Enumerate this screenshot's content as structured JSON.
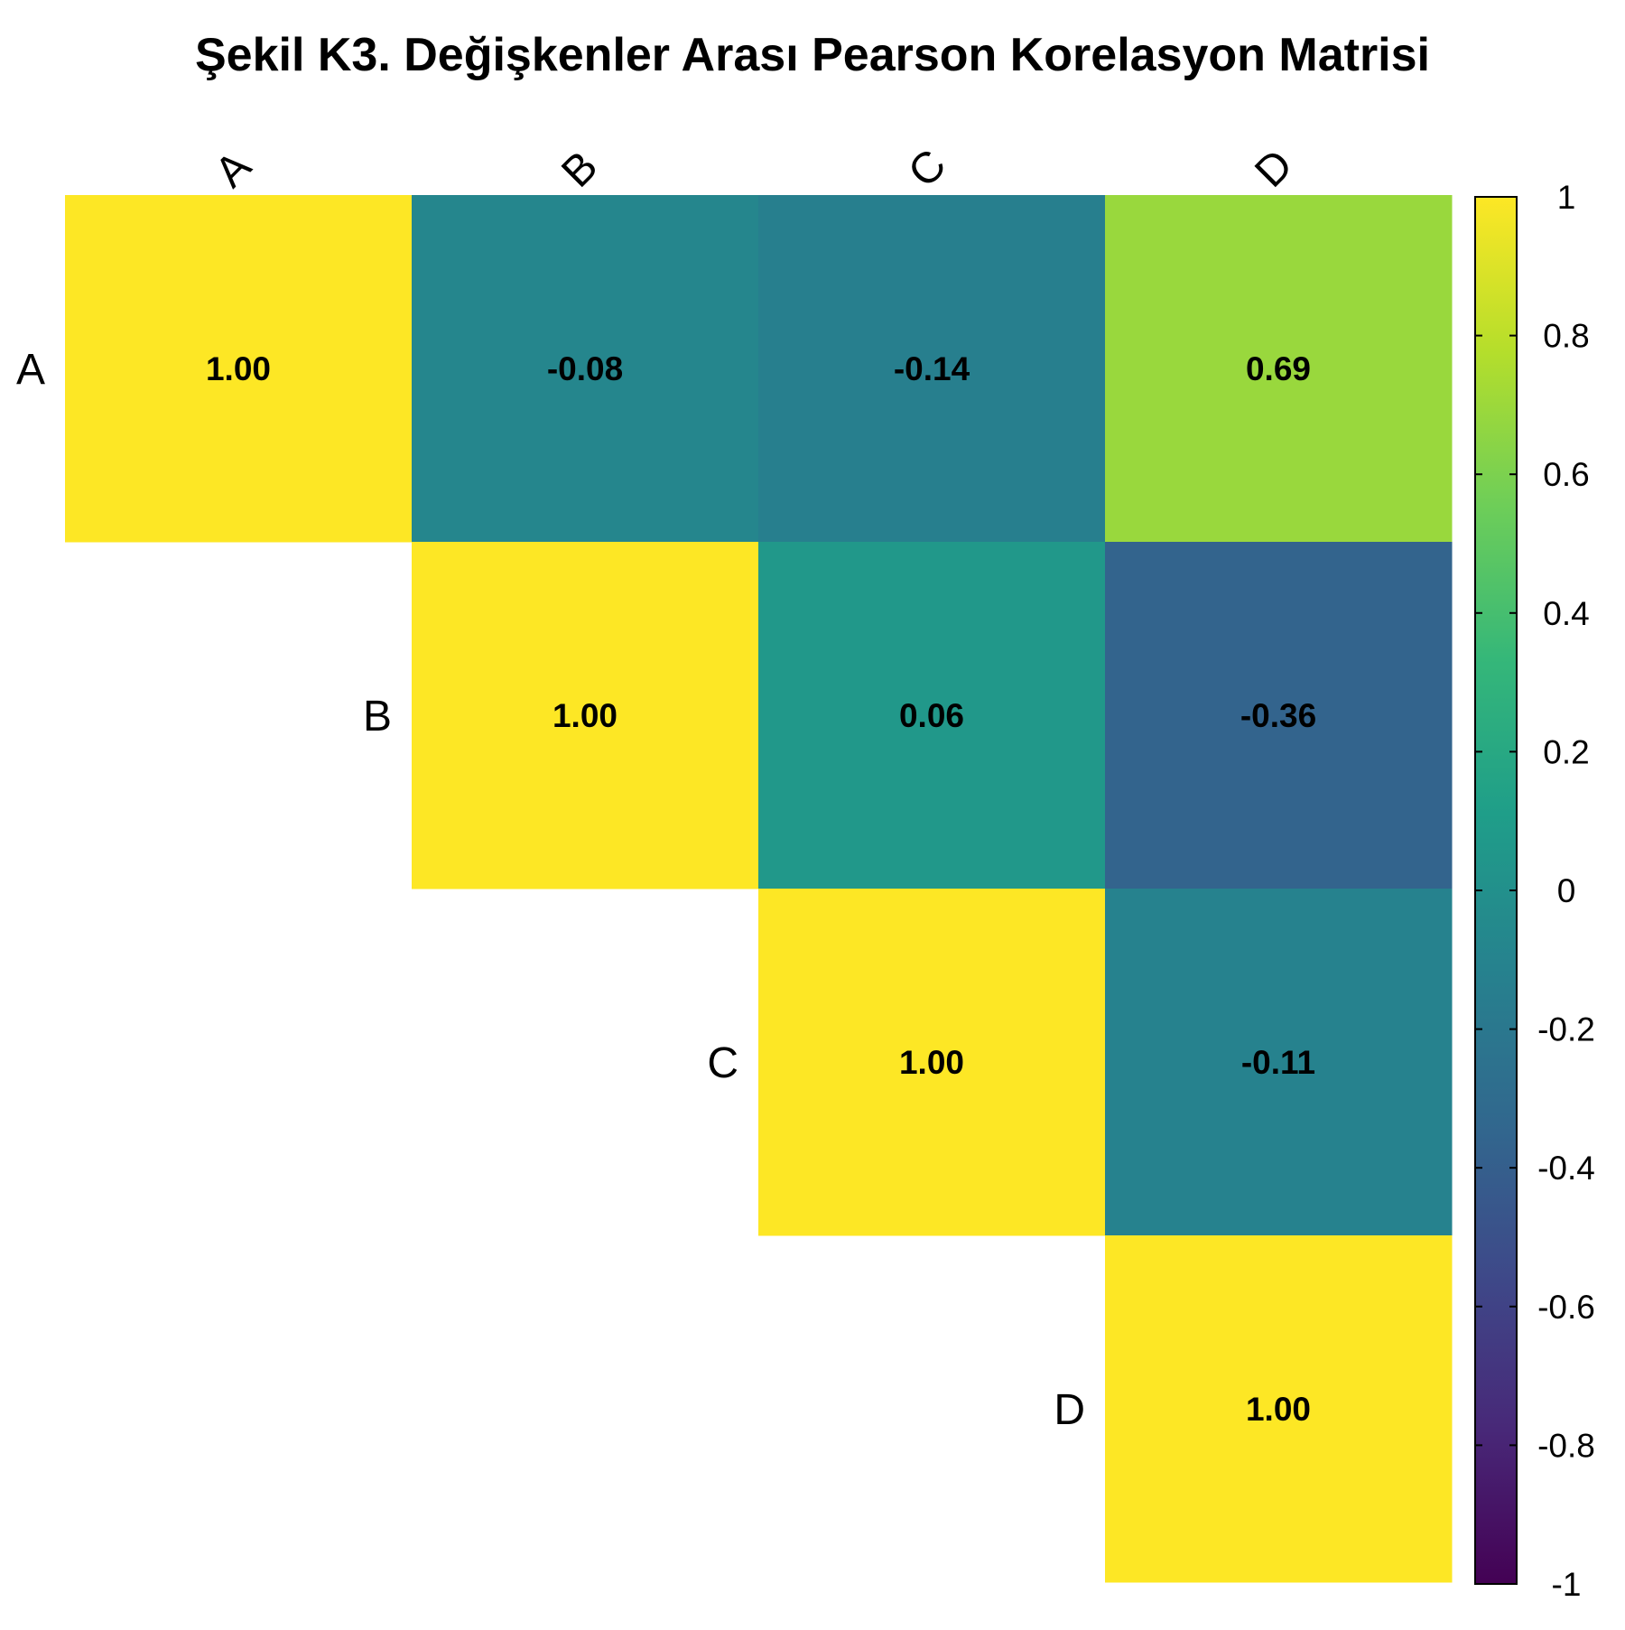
{
  "chart_data": {
    "type": "heatmap",
    "title": "Şekil K3. Değişkenler Arası Pearson Korelasyon Matrisi",
    "variables": [
      "A",
      "B",
      "C",
      "D"
    ],
    "matrix": [
      [
        1.0,
        -0.08,
        -0.14,
        0.69
      ],
      [
        null,
        1.0,
        0.06,
        -0.36
      ],
      [
        null,
        null,
        1.0,
        -0.11
      ],
      [
        null,
        null,
        null,
        1.0
      ]
    ],
    "cell_labels": [
      [
        "1.00",
        "-0.08",
        "-0.14",
        "0.69"
      ],
      [
        null,
        "1.00",
        "0.06",
        "-0.36"
      ],
      [
        null,
        null,
        "1.00",
        "-0.11"
      ],
      [
        null,
        null,
        null,
        "1.00"
      ]
    ],
    "colorbar": {
      "range": [
        -1,
        1
      ],
      "ticks": [
        1,
        0.8,
        0.6,
        0.4,
        0.2,
        0,
        -0.2,
        -0.4,
        -0.6,
        -0.8,
        -1
      ],
      "tick_labels": [
        "1",
        "0.8",
        "0.6",
        "0.4",
        "0.2",
        "0",
        "-0.2",
        "-0.4",
        "-0.6",
        "-0.8",
        "-1"
      ],
      "colormap": "viridis"
    },
    "layout": "upper-triangle",
    "colors": {
      "viridis_stops": [
        "#440154",
        "#482878",
        "#3e4989",
        "#31688e",
        "#26828e",
        "#1f9e89",
        "#35b779",
        "#6ece58",
        "#b5de2b",
        "#fde725"
      ]
    }
  }
}
